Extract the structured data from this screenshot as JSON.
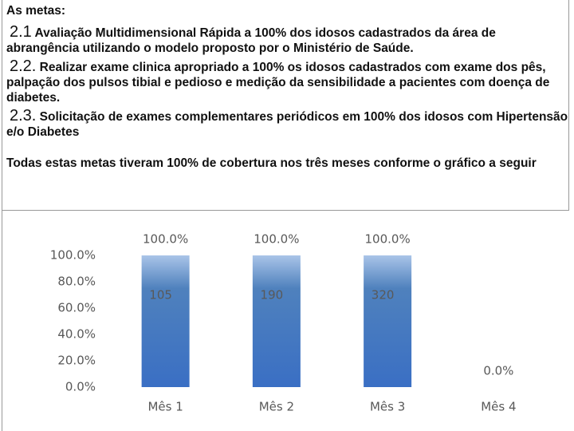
{
  "text": {
    "heading": "As metas:",
    "goals": [
      {
        "number": "2.1",
        "text": "Avaliação Multidimensional Rápida a 100% dos idosos  cadastrados da área de abrangência utilizando o modelo proposto por o Ministério de Saúde."
      },
      {
        "number": "2.2.",
        "text": "Realizar exame clinica apropriado a 100% os idosos cadastrados com exame dos pês, palpação dos pulsos tibial e pedioso e medição da sensibilidade a pacientes com doença de diabetes."
      },
      {
        "number": "2.3.",
        "text": "Solicitação de exames complementares periódicos em 100% dos idosos com Hipertensão e/o Diabetes"
      }
    ],
    "summary": "Todas estas metas tiveram 100% de cobertura nos três meses conforme o gráfico a seguir"
  },
  "chart_data": {
    "type": "bar",
    "categories": [
      "Mês 1",
      "Mês 2",
      "Mês 3",
      "Mês 4"
    ],
    "values": [
      100,
      100,
      100,
      0
    ],
    "value_labels": [
      "100.0%",
      "100.0%",
      "100.0%",
      "0.0%"
    ],
    "inner_labels": [
      105,
      190,
      320,
      null
    ],
    "color": "#4f81bd",
    "ylim": [
      0,
      100
    ],
    "yticks": [
      {
        "value": 0,
        "label": "0.0%"
      },
      {
        "value": 20,
        "label": "20.0%"
      },
      {
        "value": 40,
        "label": "40.0%"
      },
      {
        "value": 60,
        "label": "60.0%"
      },
      {
        "value": 80,
        "label": "80.0%"
      },
      {
        "value": 100,
        "label": "100.0%"
      }
    ],
    "grid": false
  }
}
